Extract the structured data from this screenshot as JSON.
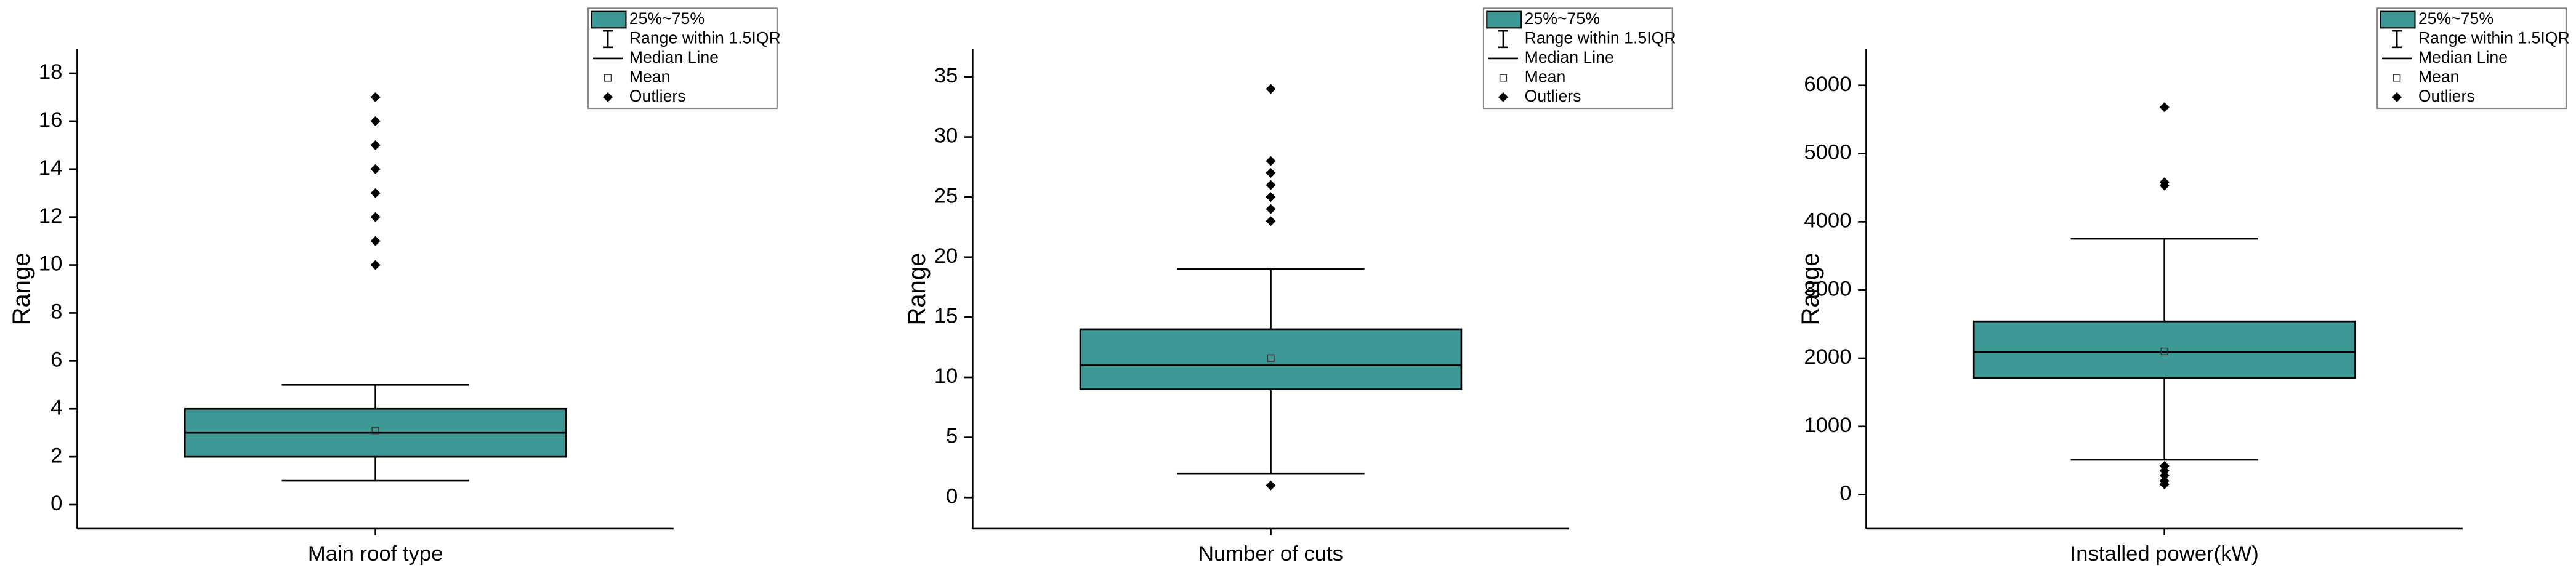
{
  "chart_data": [
    {
      "type": "box",
      "y_label": "Range",
      "categories": [
        "Main roof type"
      ],
      "legend": [
        "25%~75%",
        "Range within 1.5IQR",
        "Median Line",
        "Mean",
        "Outliers"
      ],
      "color": "#3d9896",
      "ylim": [
        -1,
        19
      ],
      "yticks": [
        0,
        2,
        4,
        6,
        8,
        10,
        12,
        14,
        16,
        18
      ],
      "boxes": [
        {
          "whisker_low": 1,
          "q1": 2,
          "median": 3,
          "q3": 4,
          "whisker_high": 5,
          "mean": 3.1,
          "outliers": [
            10,
            11,
            12,
            13,
            14,
            15,
            16,
            17
          ]
        }
      ]
    },
    {
      "type": "box",
      "y_label": "Range",
      "categories": [
        "Number of cuts"
      ],
      "legend": [
        "25%~75%",
        "Range within 1.5IQR",
        "Median Line",
        "Mean",
        "Outliers"
      ],
      "color": "#3d9896",
      "ylim": [
        -2.6,
        37.3
      ],
      "yticks": [
        0,
        5,
        10,
        15,
        20,
        25,
        30,
        35
      ],
      "boxes": [
        {
          "whisker_low": 2,
          "q1": 9,
          "median": 11,
          "q3": 14,
          "whisker_high": 19,
          "mean": 11.6,
          "outliers": [
            1,
            23,
            24,
            25,
            26,
            27,
            28,
            34
          ]
        }
      ]
    },
    {
      "type": "box",
      "y_label": "Range",
      "categories": [
        "Installed power(kW)"
      ],
      "legend": [
        "25%~75%",
        "Range within 1.5IQR",
        "Median Line",
        "Mean",
        "Outliers"
      ],
      "color": "#3d9896",
      "ylim": [
        -500,
        6530
      ],
      "yticks": [
        0,
        1000,
        2000,
        3000,
        4000,
        5000,
        6000
      ],
      "boxes": [
        {
          "whisker_low": 510,
          "q1": 1710,
          "median": 2090,
          "q3": 2540,
          "whisker_high": 3750,
          "mean": 2100,
          "outliers": [
            150,
            200,
            280,
            350,
            420,
            4530,
            4580,
            5680
          ]
        }
      ]
    }
  ]
}
